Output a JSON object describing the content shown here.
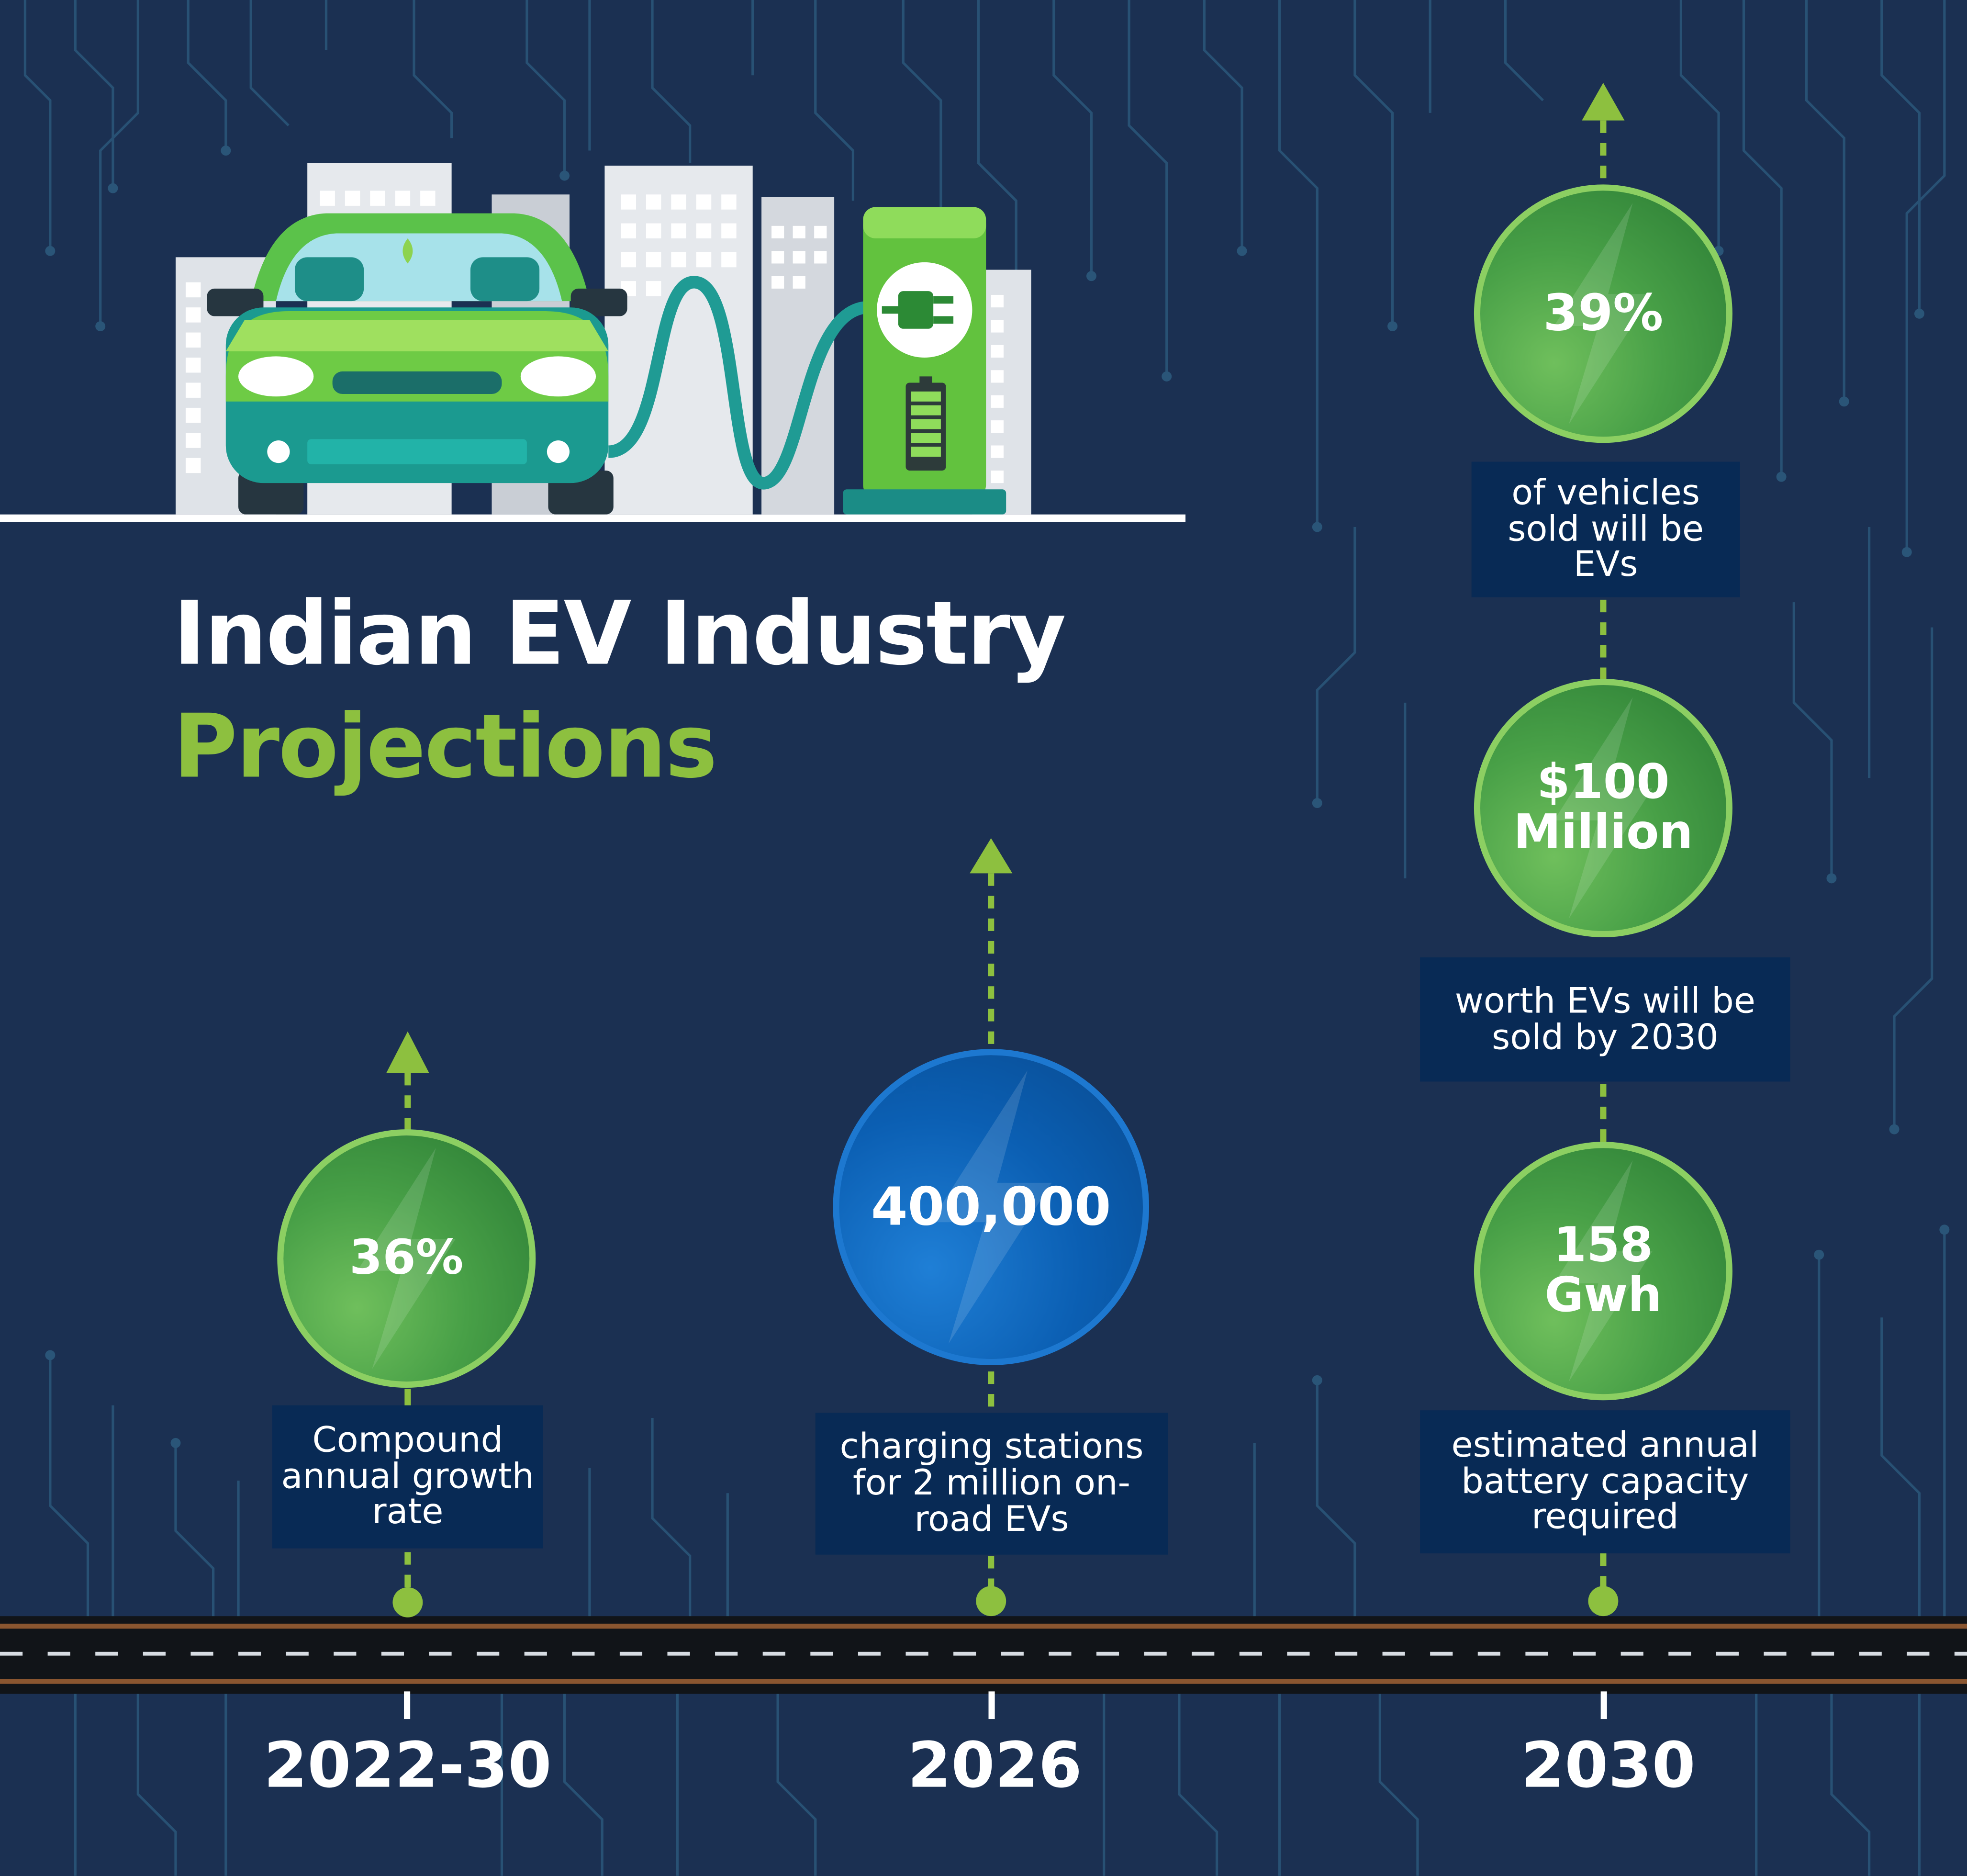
{
  "title": {
    "line1": "Indian EV Industry",
    "line2": "Projections"
  },
  "timeline": [
    {
      "year": "2022-30",
      "stats": [
        {
          "value": "36%",
          "caption": "Compound annual growth rate"
        }
      ]
    },
    {
      "year": "2026",
      "stats": [
        {
          "value": "400,000",
          "caption": "charging stations for 2 million on-road EVs"
        }
      ]
    },
    {
      "year": "2030",
      "stats": [
        {
          "value": "39%",
          "caption": "of vehicles sold will be EVs"
        },
        {
          "value_line1": "$100",
          "value_line2": "Million",
          "caption": "worth EVs will be sold by 2030"
        },
        {
          "value_line1": "158",
          "value_line2": "Gwh",
          "caption": "estimated annual battery capacity required"
        }
      ]
    }
  ],
  "colors": {
    "background": "#1b3052",
    "accent_green": "#8dc03f",
    "stat_green": "#48a047",
    "stat_blue": "#0b5fb3",
    "label_box": "#082a55"
  },
  "icons": [
    "ev-car-icon",
    "charging-station-icon",
    "city-buildings-icon",
    "lightning-bolt-icon",
    "road-icon"
  ]
}
